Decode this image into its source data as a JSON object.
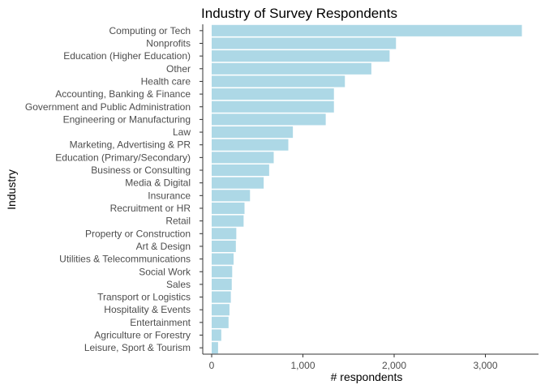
{
  "chart_data": {
    "type": "bar",
    "orientation": "horizontal",
    "title": "Industry of Survey Respondents",
    "xlabel": "# respondents",
    "ylabel": "Industry",
    "categories": [
      "Computing or Tech",
      "Nonprofits",
      "Education (Higher Education)",
      "Other",
      "Health care",
      "Accounting, Banking & Finance",
      "Government and Public Administration",
      "Engineering or Manufacturing",
      "Law",
      "Marketing, Advertising & PR",
      "Education (Primary/Secondary)",
      "Business or Consulting",
      "Media & Digital",
      "Insurance",
      "Recruitment or HR",
      "Retail",
      "Property or Construction",
      "Art & Design",
      "Utilities & Telecommunications",
      "Social Work",
      "Sales",
      "Transport or Logistics",
      "Hospitality & Events",
      "Entertainment",
      "Agriculture or Forestry",
      "Leisure, Sport & Tourism"
    ],
    "values": [
      3400,
      2020,
      1950,
      1750,
      1460,
      1340,
      1340,
      1250,
      890,
      840,
      680,
      630,
      570,
      420,
      360,
      350,
      270,
      265,
      240,
      225,
      220,
      210,
      195,
      185,
      105,
      70
    ],
    "xlim": [
      0,
      3400
    ],
    "xticks": [
      0,
      1000,
      2000,
      3000
    ],
    "xtick_labels": [
      "0",
      "1,000",
      "2,000",
      "3,000"
    ],
    "bar_color": "#add8e6",
    "grid": false
  }
}
